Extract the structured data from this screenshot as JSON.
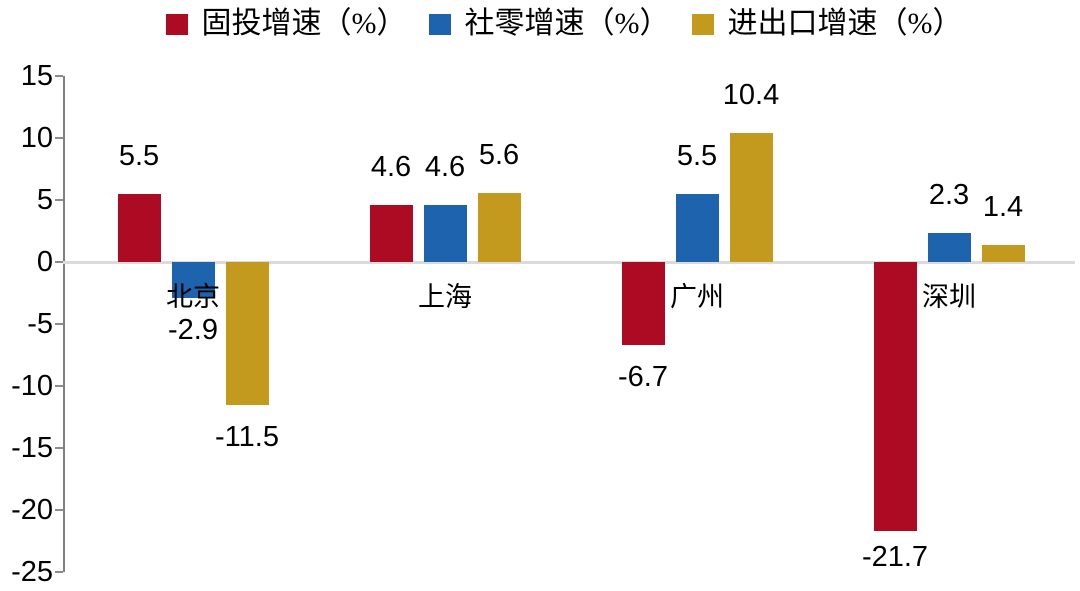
{
  "chart_data": {
    "type": "bar",
    "title": "",
    "categories": [
      "北京",
      "上海",
      "广州",
      "深圳"
    ],
    "series": [
      {
        "name": "固投增速（%）",
        "color": "#AD0A23",
        "values": [
          5.5,
          4.6,
          -6.7,
          -21.7
        ]
      },
      {
        "name": "社零增速（%）",
        "color": "#1E63AD",
        "values": [
          -2.9,
          4.6,
          5.5,
          2.3
        ]
      },
      {
        "name": "进出口增速（%）",
        "color": "#C49A1E",
        "values": [
          -11.5,
          5.6,
          10.4,
          1.4
        ]
      }
    ],
    "value_labels": [
      "5.5",
      "-2.9",
      "-11.5",
      "4.6",
      "4.6",
      "5.6",
      "-6.7",
      "5.5",
      "10.4",
      "-21.7",
      "2.3",
      "1.4"
    ],
    "xlabel": "",
    "ylabel": "",
    "ylim": [
      -25,
      15
    ],
    "yticks": [
      15,
      10,
      5,
      0,
      -5,
      -10,
      -15,
      -20,
      -25
    ],
    "grid": "zero-baseline-only",
    "legend_position": "top-center"
  },
  "colors": {
    "background": "#FFFFFF",
    "axis_line": "#808080",
    "tick": "#8C8C8C",
    "zero_gridline": "#DBDBDB",
    "text": "#000000"
  }
}
